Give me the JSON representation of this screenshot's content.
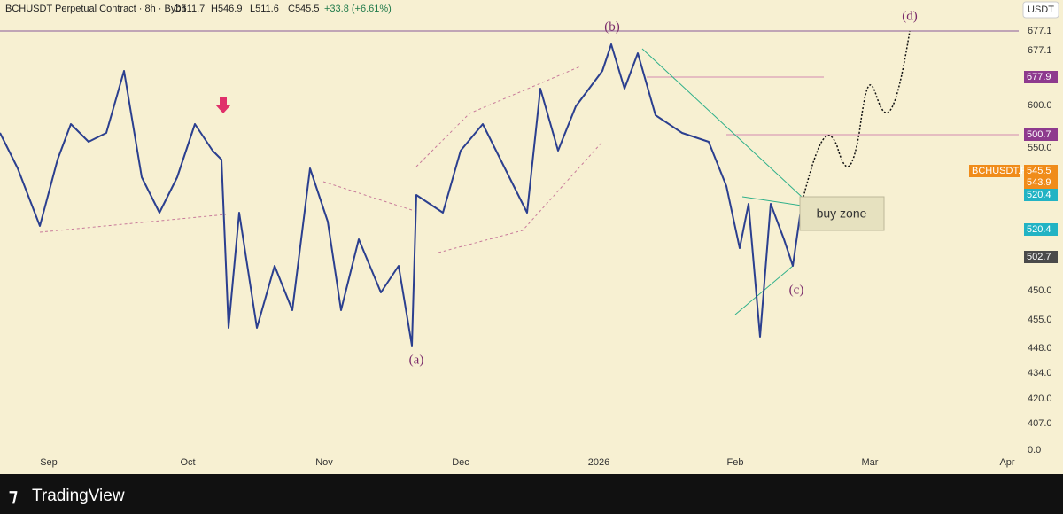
{
  "header": {
    "symbol": "BCHUSDT Perpetual Contract · 8h · Bybit",
    "open": "O511.7",
    "high": "H546.9",
    "low": "L511.6",
    "close": "C545.5",
    "change": "+33.8 (+6.61%)"
  },
  "currency": "USDT",
  "price_axis": [
    "677.1",
    "677.1",
    "600.0",
    "550.0",
    "450.0",
    "455.0",
    "448.0",
    "434.0",
    "420.0",
    "407.0",
    "0.0"
  ],
  "price_tags": [
    {
      "text": "677.9",
      "color": "#8e3a8e"
    },
    {
      "text": "500.7",
      "color": "#8e3a8e"
    },
    {
      "text": "BCHUSDT.P",
      "color": "#f08c1a"
    },
    {
      "text": "545.5",
      "color": "#f08c1a"
    },
    {
      "text": "543.9",
      "color": "#f08c1a"
    },
    {
      "text": "520.4",
      "color": "#22b3c4"
    },
    {
      "text": "520.4",
      "color": "#22b3c4"
    },
    {
      "text": "502.7",
      "color": "#4a4a4a"
    }
  ],
  "time_axis": [
    "Sep",
    "Oct",
    "Nov",
    "Dec",
    "2026",
    "Feb",
    "Mar",
    "Apr"
  ],
  "annotations": {
    "a": "(a)",
    "b": "(b)",
    "c": "(c)",
    "d": "(d)",
    "buy_zone": "buy zone"
  },
  "footer": {
    "brand": "TradingView"
  }
}
